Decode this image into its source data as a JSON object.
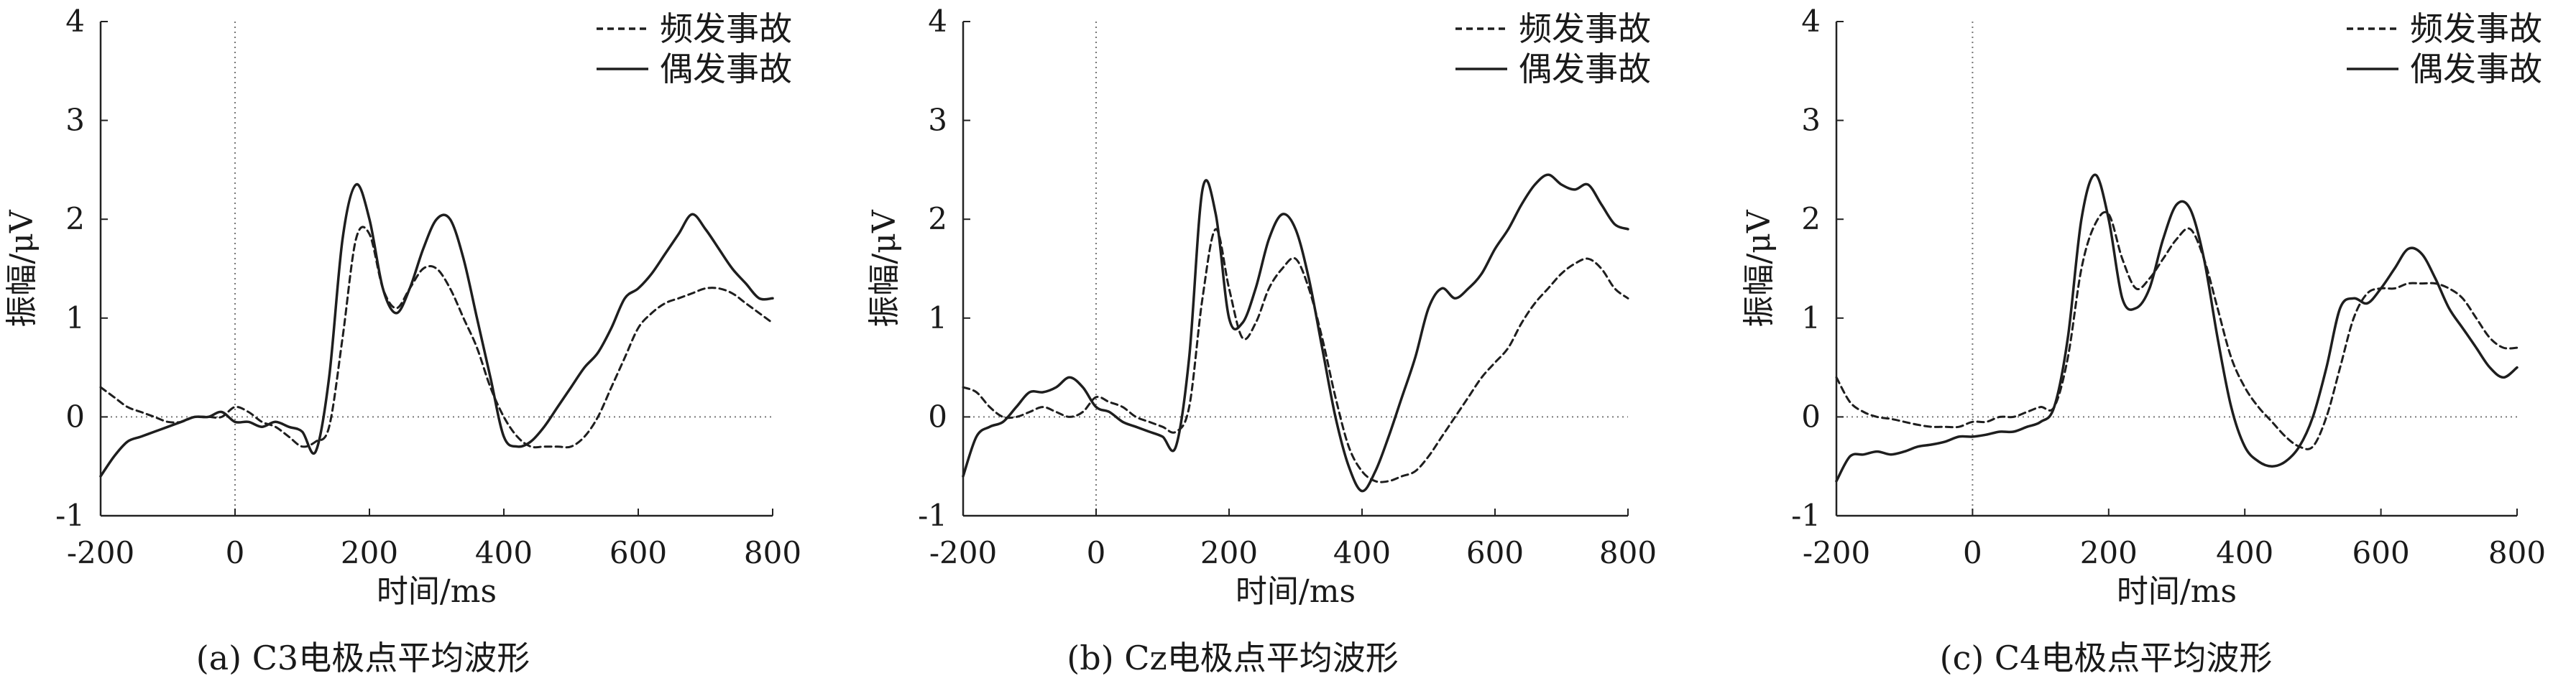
{
  "chart_data": [
    {
      "type": "line",
      "caption": "(a) C3电极点平均波形",
      "xlabel": "时间/ms",
      "ylabel": "振幅/μV",
      "xlim": [
        -200,
        800
      ],
      "ylim": [
        -1,
        4
      ],
      "xticks": [
        "-200",
        "0",
        "200",
        "400",
        "600",
        "800"
      ],
      "yticks": [
        "-1",
        "0",
        "1",
        "2",
        "3",
        "4"
      ],
      "legend_position": "top-right",
      "series": [
        {
          "name": "频发事故",
          "style": "dashed",
          "x": [
            -200,
            -180,
            -160,
            -140,
            -120,
            -100,
            -80,
            -60,
            -40,
            -20,
            0,
            20,
            40,
            60,
            80,
            100,
            120,
            140,
            160,
            180,
            200,
            220,
            240,
            260,
            280,
            300,
            320,
            340,
            360,
            380,
            400,
            420,
            440,
            460,
            480,
            500,
            520,
            540,
            560,
            580,
            600,
            620,
            640,
            660,
            680,
            700,
            720,
            740,
            760,
            780,
            800
          ],
          "y": [
            0.3,
            0.2,
            0.1,
            0.05,
            0.0,
            -0.05,
            -0.05,
            0.0,
            0.0,
            0.0,
            0.1,
            0.05,
            -0.05,
            -0.1,
            -0.2,
            -0.3,
            -0.25,
            -0.1,
            0.8,
            1.8,
            1.85,
            1.3,
            1.1,
            1.3,
            1.5,
            1.5,
            1.3,
            1.0,
            0.7,
            0.3,
            0.0,
            -0.2,
            -0.3,
            -0.3,
            -0.3,
            -0.3,
            -0.2,
            0.0,
            0.3,
            0.6,
            0.9,
            1.05,
            1.15,
            1.2,
            1.25,
            1.3,
            1.3,
            1.25,
            1.15,
            1.05,
            0.95
          ]
        },
        {
          "name": "偶发事故",
          "style": "solid",
          "x": [
            -200,
            -180,
            -160,
            -140,
            -120,
            -100,
            -80,
            -60,
            -40,
            -20,
            0,
            20,
            40,
            60,
            80,
            100,
            120,
            140,
            160,
            180,
            200,
            220,
            240,
            260,
            280,
            300,
            320,
            340,
            360,
            380,
            400,
            420,
            440,
            460,
            480,
            500,
            520,
            540,
            560,
            580,
            600,
            620,
            640,
            660,
            680,
            700,
            720,
            740,
            760,
            780,
            800
          ],
          "y": [
            -0.6,
            -0.4,
            -0.25,
            -0.2,
            -0.15,
            -0.1,
            -0.05,
            0.0,
            0.0,
            0.05,
            -0.05,
            -0.05,
            -0.1,
            -0.05,
            -0.1,
            -0.15,
            -0.35,
            0.4,
            1.8,
            2.35,
            2.0,
            1.3,
            1.05,
            1.3,
            1.7,
            2.0,
            2.0,
            1.6,
            1.0,
            0.4,
            -0.2,
            -0.3,
            -0.25,
            -0.1,
            0.1,
            0.3,
            0.5,
            0.65,
            0.9,
            1.2,
            1.3,
            1.45,
            1.65,
            1.85,
            2.05,
            1.9,
            1.7,
            1.5,
            1.35,
            1.2,
            1.2
          ]
        }
      ]
    },
    {
      "type": "line",
      "caption": "(b) Cz电极点平均波形",
      "xlabel": "时间/ms",
      "ylabel": "振幅/μV",
      "xlim": [
        -200,
        800
      ],
      "ylim": [
        -1,
        4
      ],
      "xticks": [
        "-200",
        "0",
        "200",
        "400",
        "600",
        "800"
      ],
      "yticks": [
        "-1",
        "0",
        "1",
        "2",
        "3",
        "4"
      ],
      "legend_position": "top-right",
      "series": [
        {
          "name": "频发事故",
          "style": "dashed",
          "x": [
            -200,
            -180,
            -160,
            -140,
            -120,
            -100,
            -80,
            -60,
            -40,
            -20,
            0,
            20,
            40,
            60,
            80,
            100,
            120,
            140,
            160,
            180,
            200,
            220,
            240,
            260,
            280,
            300,
            320,
            340,
            360,
            380,
            400,
            420,
            440,
            460,
            480,
            500,
            520,
            540,
            560,
            580,
            600,
            620,
            640,
            660,
            680,
            700,
            720,
            740,
            760,
            780,
            800
          ],
          "y": [
            0.3,
            0.25,
            0.1,
            0.0,
            0.0,
            0.05,
            0.1,
            0.05,
            0.0,
            0.05,
            0.2,
            0.15,
            0.1,
            0.0,
            -0.05,
            -0.1,
            -0.15,
            0.1,
            1.2,
            1.9,
            1.3,
            0.8,
            0.95,
            1.3,
            1.5,
            1.6,
            1.3,
            0.8,
            0.2,
            -0.3,
            -0.55,
            -0.65,
            -0.65,
            -0.6,
            -0.55,
            -0.4,
            -0.2,
            0.0,
            0.2,
            0.4,
            0.55,
            0.7,
            0.95,
            1.15,
            1.3,
            1.45,
            1.55,
            1.6,
            1.5,
            1.3,
            1.2
          ]
        },
        {
          "name": "偶发事故",
          "style": "solid",
          "x": [
            -200,
            -180,
            -160,
            -140,
            -120,
            -100,
            -80,
            -60,
            -40,
            -20,
            0,
            20,
            40,
            60,
            80,
            100,
            120,
            140,
            160,
            180,
            200,
            220,
            240,
            260,
            280,
            300,
            320,
            340,
            360,
            380,
            400,
            420,
            440,
            460,
            480,
            500,
            520,
            540,
            560,
            580,
            600,
            620,
            640,
            660,
            680,
            700,
            720,
            740,
            760,
            780,
            800
          ],
          "y": [
            -0.6,
            -0.2,
            -0.1,
            -0.05,
            0.1,
            0.25,
            0.25,
            0.3,
            0.4,
            0.3,
            0.1,
            0.05,
            -0.05,
            -0.1,
            -0.15,
            -0.2,
            -0.3,
            0.6,
            2.3,
            2.05,
            1.0,
            0.95,
            1.3,
            1.8,
            2.05,
            1.9,
            1.4,
            0.7,
            0.0,
            -0.5,
            -0.75,
            -0.55,
            -0.2,
            0.2,
            0.6,
            1.1,
            1.3,
            1.2,
            1.3,
            1.45,
            1.7,
            1.9,
            2.15,
            2.35,
            2.45,
            2.35,
            2.3,
            2.35,
            2.15,
            1.95,
            1.9
          ]
        }
      ]
    },
    {
      "type": "line",
      "caption": "(c) C4电极点平均波形",
      "xlabel": "时间/ms",
      "ylabel": "振幅/μV",
      "xlim": [
        -200,
        800
      ],
      "ylim": [
        -1,
        4
      ],
      "xticks": [
        "-200",
        "0",
        "200",
        "400",
        "600",
        "800"
      ],
      "yticks": [
        "-1",
        "0",
        "1",
        "2",
        "3",
        "4"
      ],
      "legend_position": "top-right",
      "series": [
        {
          "name": "频发事故",
          "style": "dashed",
          "x": [
            -200,
            -180,
            -160,
            -140,
            -120,
            -100,
            -80,
            -60,
            -40,
            -20,
            0,
            20,
            40,
            60,
            80,
            100,
            120,
            140,
            160,
            180,
            200,
            220,
            240,
            260,
            280,
            300,
            320,
            340,
            360,
            380,
            400,
            420,
            440,
            460,
            480,
            500,
            520,
            540,
            560,
            580,
            600,
            620,
            640,
            660,
            680,
            700,
            720,
            740,
            760,
            780,
            800
          ],
          "y": [
            0.4,
            0.15,
            0.05,
            0.0,
            -0.02,
            -0.05,
            -0.08,
            -0.1,
            -0.1,
            -0.1,
            -0.05,
            -0.05,
            0.0,
            0.0,
            0.05,
            0.1,
            0.1,
            0.6,
            1.5,
            1.95,
            2.05,
            1.6,
            1.3,
            1.4,
            1.6,
            1.8,
            1.9,
            1.6,
            1.1,
            0.6,
            0.3,
            0.1,
            -0.05,
            -0.2,
            -0.3,
            -0.3,
            0.0,
            0.5,
            1.0,
            1.25,
            1.3,
            1.3,
            1.35,
            1.35,
            1.35,
            1.3,
            1.2,
            1.0,
            0.8,
            0.7,
            0.7
          ]
        },
        {
          "name": "偶发事故",
          "style": "solid",
          "x": [
            -200,
            -180,
            -160,
            -140,
            -120,
            -100,
            -80,
            -60,
            -40,
            -20,
            0,
            20,
            40,
            60,
            80,
            100,
            120,
            140,
            160,
            180,
            200,
            220,
            240,
            260,
            280,
            300,
            320,
            340,
            360,
            380,
            400,
            420,
            440,
            460,
            480,
            500,
            520,
            540,
            560,
            580,
            600,
            620,
            640,
            660,
            680,
            700,
            720,
            740,
            760,
            780,
            800
          ],
          "y": [
            -0.65,
            -0.4,
            -0.38,
            -0.35,
            -0.38,
            -0.35,
            -0.3,
            -0.28,
            -0.25,
            -0.2,
            -0.2,
            -0.18,
            -0.15,
            -0.15,
            -0.1,
            -0.05,
            0.1,
            0.8,
            2.0,
            2.45,
            2.0,
            1.2,
            1.1,
            1.3,
            1.8,
            2.15,
            2.1,
            1.6,
            0.8,
            0.1,
            -0.3,
            -0.45,
            -0.5,
            -0.45,
            -0.3,
            0.0,
            0.5,
            1.1,
            1.2,
            1.15,
            1.3,
            1.5,
            1.7,
            1.65,
            1.4,
            1.1,
            0.9,
            0.7,
            0.5,
            0.4,
            0.5
          ]
        }
      ]
    }
  ]
}
